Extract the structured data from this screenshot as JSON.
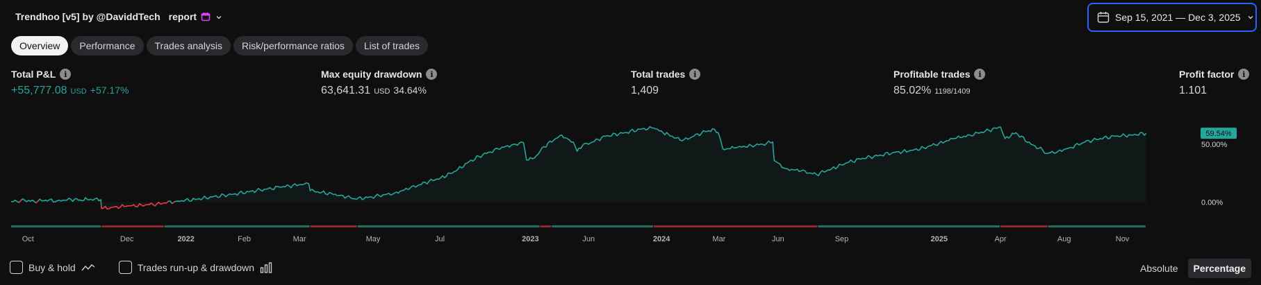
{
  "header": {
    "prefix_glyph": "",
    "title": "Trendhoo [v5] by @DaviddTech",
    "mid_glyph": "",
    "suffix": "report",
    "calendar_color": "#e040fb"
  },
  "date_range": {
    "label": "Sep 15, 2021 — Dec 3, 2025"
  },
  "tabs": [
    {
      "label": "Overview",
      "active": true
    },
    {
      "label": "Performance",
      "active": false
    },
    {
      "label": "Trades analysis",
      "active": false
    },
    {
      "label": "Risk/performance ratios",
      "active": false
    },
    {
      "label": "List of trades",
      "active": false
    }
  ],
  "metrics": {
    "total_pnl": {
      "label": "Total P&L",
      "value": "+55,777.08",
      "unit": "USD",
      "pct": "+57.17%"
    },
    "max_dd": {
      "label": "Max equity drawdown",
      "value": "63,641.31",
      "unit": "USD",
      "pct": "34.64%"
    },
    "total_trades": {
      "label": "Total trades",
      "value": "1,409"
    },
    "profitable": {
      "label": "Profitable trades",
      "value": "85.02%",
      "sub": "1198/1409"
    },
    "profit_factor": {
      "label": "Profit factor",
      "value": "1.101"
    },
    "info_glyph": "i"
  },
  "colors": {
    "accent": "#2962ff",
    "up": "#26a69a",
    "down": "#f23645"
  },
  "chart_data": {
    "type": "area",
    "x_label": "",
    "y_label": "",
    "ylim": [
      -8,
      80
    ],
    "y_ticks": [
      {
        "value": 0,
        "label": "0.00%"
      },
      {
        "value": 50,
        "label": "50.00%"
      }
    ],
    "last_value_label": "59.54%",
    "x_range": [
      0,
      1540
    ],
    "x_ticks": [
      {
        "x": 22,
        "label": "Oct",
        "bold": false
      },
      {
        "x": 151,
        "label": "Dec",
        "bold": false
      },
      {
        "x": 228,
        "label": "2022",
        "bold": true
      },
      {
        "x": 304,
        "label": "Feb",
        "bold": false
      },
      {
        "x": 376,
        "label": "Mar",
        "bold": false
      },
      {
        "x": 472,
        "label": "May",
        "bold": false
      },
      {
        "x": 559,
        "label": "Jul",
        "bold": false
      },
      {
        "x": 677,
        "label": "2023",
        "bold": true
      },
      {
        "x": 753,
        "label": "Jun",
        "bold": false
      },
      {
        "x": 848,
        "label": "2024",
        "bold": true
      },
      {
        "x": 923,
        "label": "Mar",
        "bold": false
      },
      {
        "x": 1000,
        "label": "Jun",
        "bold": false
      },
      {
        "x": 1083,
        "label": "Sep",
        "bold": false
      },
      {
        "x": 1210,
        "label": "2025",
        "bold": true
      },
      {
        "x": 1290,
        "label": "Apr",
        "bold": false
      },
      {
        "x": 1373,
        "label": "Aug",
        "bold": false
      },
      {
        "x": 1449,
        "label": "Nov",
        "bold": false
      }
    ],
    "series": [
      {
        "points": [
          [
            0,
            0.5
          ],
          [
            18,
            1.5
          ],
          [
            30,
            0.8
          ],
          [
            45,
            1.8
          ],
          [
            60,
            1.2
          ],
          [
            78,
            2.5
          ],
          [
            90,
            2.0
          ],
          [
            104,
            2.6
          ],
          [
            117,
            2.2
          ],
          [
            118,
            -5.5
          ],
          [
            130,
            -4.5
          ],
          [
            150,
            -3.5
          ],
          [
            170,
            -2.5
          ],
          [
            190,
            -1.5
          ],
          [
            200,
            -0.5
          ],
          [
            215,
            0.8
          ],
          [
            240,
            2.5
          ],
          [
            262,
            4.5
          ],
          [
            290,
            7
          ],
          [
            320,
            10
          ],
          [
            350,
            13
          ],
          [
            375,
            15
          ],
          [
            388,
            16
          ],
          [
            390,
            10
          ],
          [
            405,
            8.5
          ],
          [
            430,
            6
          ],
          [
            448,
            3
          ],
          [
            465,
            4
          ],
          [
            480,
            5.5
          ],
          [
            500,
            8
          ],
          [
            520,
            12
          ],
          [
            540,
            17
          ],
          [
            560,
            21
          ],
          [
            580,
            27
          ],
          [
            597,
            35
          ],
          [
            615,
            41
          ],
          [
            635,
            46
          ],
          [
            655,
            50
          ],
          [
            668,
            51.5
          ],
          [
            672,
            36.5
          ],
          [
            682,
            38
          ],
          [
            695,
            48
          ],
          [
            710,
            55
          ],
          [
            718,
            58
          ],
          [
            725,
            55
          ],
          [
            733,
            52
          ],
          [
            738,
            44
          ],
          [
            745,
            49
          ],
          [
            758,
            52
          ],
          [
            775,
            57
          ],
          [
            800,
            60
          ],
          [
            820,
            63
          ],
          [
            838,
            64
          ],
          [
            850,
            60
          ],
          [
            862,
            57
          ],
          [
            875,
            53
          ],
          [
            890,
            57
          ],
          [
            905,
            61
          ],
          [
            917,
            63
          ],
          [
            922,
            60
          ],
          [
            928,
            46
          ],
          [
            945,
            47
          ],
          [
            965,
            49
          ],
          [
            980,
            50
          ],
          [
            993,
            52
          ],
          [
            995,
            36
          ],
          [
            1010,
            29
          ],
          [
            1030,
            27
          ],
          [
            1050,
            24
          ],
          [
            1070,
            29
          ],
          [
            1090,
            34
          ],
          [
            1110,
            38
          ],
          [
            1130,
            40
          ],
          [
            1150,
            43
          ],
          [
            1170,
            44
          ],
          [
            1190,
            47
          ],
          [
            1210,
            51
          ],
          [
            1230,
            55
          ],
          [
            1250,
            58
          ],
          [
            1275,
            62
          ],
          [
            1290,
            65
          ],
          [
            1296,
            55
          ],
          [
            1310,
            60
          ],
          [
            1330,
            50
          ],
          [
            1345,
            45
          ],
          [
            1350,
            42
          ],
          [
            1365,
            44
          ],
          [
            1380,
            47
          ],
          [
            1400,
            52
          ],
          [
            1420,
            55
          ],
          [
            1440,
            57
          ],
          [
            1460,
            58
          ],
          [
            1480,
            59.54
          ]
        ]
      }
    ],
    "drawdown_segments": [
      {
        "from": 0,
        "to": 118,
        "color": "up"
      },
      {
        "from": 118,
        "to": 200,
        "color": "down"
      },
      {
        "from": 200,
        "to": 390,
        "color": "up"
      },
      {
        "from": 390,
        "to": 452,
        "color": "down"
      },
      {
        "from": 452,
        "to": 690,
        "color": "up"
      },
      {
        "from": 690,
        "to": 705,
        "color": "down"
      },
      {
        "from": 705,
        "to": 838,
        "color": "up"
      },
      {
        "from": 838,
        "to": 1052,
        "color": "down"
      },
      {
        "from": 1052,
        "to": 1290,
        "color": "up"
      },
      {
        "from": 1290,
        "to": 1352,
        "color": "down"
      },
      {
        "from": 1352,
        "to": 1480,
        "color": "up"
      }
    ]
  },
  "footer": {
    "buy_hold": "Buy & hold",
    "runup": "Trades run-up & drawdown",
    "absolute": "Absolute",
    "percentage": "Percentage"
  }
}
